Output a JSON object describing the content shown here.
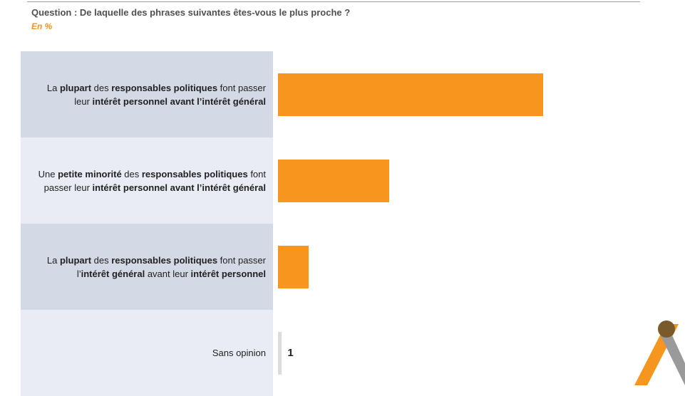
{
  "header": {
    "question": "Question : De laquelle des phrases suivantes êtes-vous le plus proche ?",
    "unit": "En %"
  },
  "colors": {
    "bar": "#f7961e",
    "minor_bar": "#dcdcdc",
    "row_dark": "#d4d9e6",
    "row_light": "#e9ecf5",
    "accent_text": "#f29422"
  },
  "logo": {
    "icon": "ifop-logo-icon"
  },
  "chart_data": {
    "type": "bar",
    "orientation": "horizontal",
    "title": "Question : De laquelle des phrases suivantes êtes-vous le plus proche ?",
    "unit": "En %",
    "categories": [
      [
        {
          "t": "La ",
          "b": false
        },
        {
          "t": "plupart",
          "b": true
        },
        {
          "t": " des ",
          "b": false
        },
        {
          "t": "responsables politiques",
          "b": true
        },
        {
          "t": " font passer leur ",
          "b": false
        },
        {
          "t": "intérêt personnel avant l’intérêt général",
          "b": true
        }
      ],
      [
        {
          "t": "Une ",
          "b": false
        },
        {
          "t": "petite minorité",
          "b": true
        },
        {
          "t": " des ",
          "b": false
        },
        {
          "t": "responsables politiques",
          "b": true
        },
        {
          "t": " font passer leur ",
          "b": false
        },
        {
          "t": "intérêt personnel avant l’intérêt général",
          "b": true
        }
      ],
      [
        {
          "t": "La ",
          "b": false
        },
        {
          "t": "plupart",
          "b": true
        },
        {
          "t": " des ",
          "b": false
        },
        {
          "t": "responsables politiques",
          "b": true
        },
        {
          "t": " font passer l’",
          "b": false
        },
        {
          "t": "intérêt général",
          "b": true
        },
        {
          "t": " avant leur ",
          "b": false
        },
        {
          "t": "intérêt personnel",
          "b": true
        }
      ],
      [
        {
          "t": "Sans opinion",
          "b": false
        }
      ]
    ],
    "category_plain": [
      "La plupart des responsables politiques font passer leur intérêt personnel avant l’intérêt général",
      "Une petite minorité des responsables politiques font passer leur intérêt personnel avant l’intérêt général",
      "La plupart des responsables politiques font passer l’intérêt général avant leur intérêt personnel",
      "Sans opinion"
    ],
    "values": [
      69,
      29,
      8,
      1
    ],
    "value_labels": [
      "",
      "",
      "",
      "1"
    ],
    "xlim": [
      0,
      100
    ],
    "grid": false,
    "legend": "none"
  }
}
